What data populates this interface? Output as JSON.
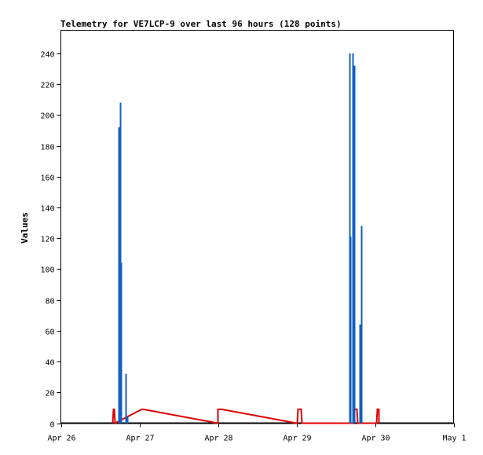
{
  "chart_data": {
    "type": "line",
    "title": "Telemetry for VE7LCP-9 over last 96 hours (128 points)",
    "xlabel": "",
    "ylabel": "Values",
    "x_ticks": [
      "Apr 26",
      "Apr 27",
      "Apr 28",
      "Apr 29",
      "Apr 30",
      "May 1"
    ],
    "xlim_days": [
      26,
      31
    ],
    "ylim": [
      0,
      255
    ],
    "y_ticks": [
      0,
      20,
      40,
      60,
      80,
      100,
      120,
      140,
      160,
      180,
      200,
      220,
      240
    ],
    "grid": false,
    "legend": "none",
    "series": [
      {
        "color": "#000000",
        "style": "line",
        "points": [
          [
            26.0,
            0
          ],
          [
            31.0,
            0
          ]
        ]
      },
      {
        "color": "#e00000",
        "style": "line",
        "points": [
          [
            26.66,
            0
          ],
          [
            26.67,
            9
          ],
          [
            26.68,
            9
          ],
          [
            26.69,
            0
          ],
          [
            27.03,
            9
          ],
          [
            27.05,
            9
          ],
          [
            28.0,
            0
          ],
          [
            28.0,
            9
          ],
          [
            28.05,
            9
          ],
          [
            29.0,
            0
          ],
          [
            29.01,
            0
          ],
          [
            29.02,
            9
          ],
          [
            29.06,
            9
          ],
          [
            29.07,
            0
          ],
          [
            29.72,
            0
          ],
          [
            29.73,
            9
          ],
          [
            29.77,
            9
          ],
          [
            29.78,
            0
          ],
          [
            30.02,
            0
          ],
          [
            30.03,
            9
          ],
          [
            30.05,
            9
          ],
          [
            30.05,
            0
          ]
        ]
      },
      {
        "color": "#1060c0",
        "style": "spikes",
        "points": [
          [
            26.74,
            192
          ],
          [
            26.75,
            208
          ],
          [
            26.76,
            104
          ],
          [
            26.82,
            32
          ],
          [
            26.83,
            17
          ],
          [
            26.84,
            4
          ],
          [
            29.67,
            240
          ],
          [
            29.68,
            121
          ],
          [
            29.72,
            240
          ],
          [
            29.73,
            232
          ],
          [
            29.74,
            225
          ],
          [
            29.8,
            12
          ],
          [
            29.81,
            64
          ],
          [
            29.82,
            128
          ]
        ]
      }
    ]
  }
}
